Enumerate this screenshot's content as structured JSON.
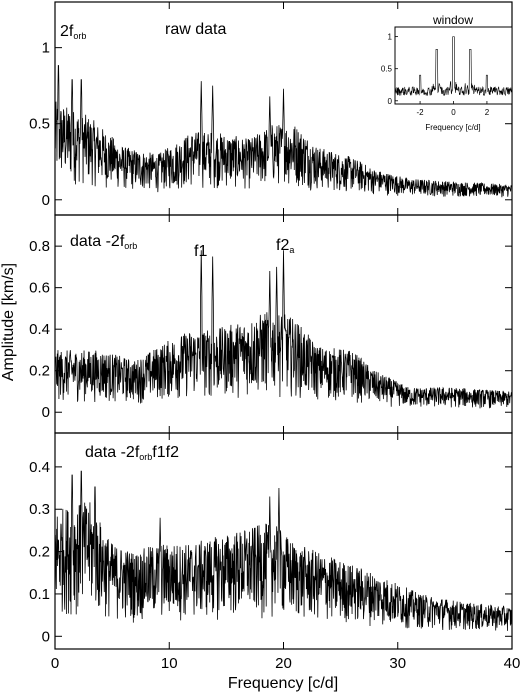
{
  "chart_data": [
    {
      "type": "line",
      "panel": "top",
      "annotations": {
        "orb_main": "2f",
        "orb_sub": "orb",
        "label": "raw data"
      },
      "xlim": [
        0,
        40
      ],
      "ylim": [
        -0.1,
        1.3
      ],
      "yticks": [
        0,
        0.5,
        1
      ],
      "ytick_labels": [
        "0",
        "0.5",
        "1"
      ],
      "peaks": [
        {
          "x": 0.3,
          "y": 0.95
        },
        {
          "x": 1.5,
          "y": 0.85
        },
        {
          "x": 2.3,
          "y": 0.85
        },
        {
          "x": 12.8,
          "y": 0.78
        },
        {
          "x": 13.8,
          "y": 0.75
        },
        {
          "x": 18.8,
          "y": 0.68
        },
        {
          "x": 20.0,
          "y": 0.73
        }
      ],
      "noise_envelope": [
        [
          0,
          0.65
        ],
        [
          3,
          0.55
        ],
        [
          6,
          0.35
        ],
        [
          9,
          0.3
        ],
        [
          12,
          0.45
        ],
        [
          14,
          0.45
        ],
        [
          17,
          0.4
        ],
        [
          19,
          0.5
        ],
        [
          21,
          0.5
        ],
        [
          23,
          0.35
        ],
        [
          26,
          0.28
        ],
        [
          28,
          0.2
        ],
        [
          31,
          0.14
        ],
        [
          35,
          0.12
        ],
        [
          40,
          0.1
        ]
      ],
      "inset": {
        "title": "window",
        "xlabel": "Frequency [c/d]",
        "xlim": [
          -3.5,
          3.5
        ],
        "ylim": [
          -0.05,
          1.15
        ],
        "xticks": [
          -2,
          0,
          2
        ],
        "xtick_labels": [
          "-2",
          "0",
          "2"
        ],
        "yticks": [
          0,
          0.5,
          1
        ],
        "ytick_labels": [
          "0",
          "0.5",
          "1"
        ],
        "peaks": [
          {
            "x": 0,
            "y": 1.0
          },
          {
            "x": -1,
            "y": 0.8
          },
          {
            "x": 1,
            "y": 0.8
          },
          {
            "x": -2,
            "y": 0.4
          },
          {
            "x": 2,
            "y": 0.4
          }
        ]
      }
    },
    {
      "type": "line",
      "panel": "middle",
      "annotations": {
        "data_label": "data -2f",
        "orb_sub": "orb",
        "f1": "f1",
        "f2_main": "f2",
        "f2_sub": "a"
      },
      "xlim": [
        0,
        40
      ],
      "ylim": [
        -0.1,
        0.95
      ],
      "yticks": [
        0,
        0.2,
        0.4,
        0.6,
        0.8
      ],
      "ytick_labels": [
        "0",
        "0.2",
        "0.4",
        "0.6",
        "0.8"
      ],
      "peaks": [
        {
          "x": 12.8,
          "y": 0.78
        },
        {
          "x": 13.8,
          "y": 0.75
        },
        {
          "x": 18.8,
          "y": 0.68
        },
        {
          "x": 19.4,
          "y": 0.7
        },
        {
          "x": 20.0,
          "y": 0.78
        }
      ],
      "noise_envelope": [
        [
          0,
          0.3
        ],
        [
          4,
          0.3
        ],
        [
          7,
          0.25
        ],
        [
          10,
          0.35
        ],
        [
          12,
          0.4
        ],
        [
          14,
          0.4
        ],
        [
          17,
          0.45
        ],
        [
          19,
          0.5
        ],
        [
          21,
          0.45
        ],
        [
          23,
          0.32
        ],
        [
          26,
          0.3
        ],
        [
          28,
          0.2
        ],
        [
          31,
          0.12
        ],
        [
          35,
          0.12
        ],
        [
          40,
          0.1
        ]
      ]
    },
    {
      "type": "line",
      "panel": "bottom",
      "annotations": {
        "data_label": "data -2f",
        "orb_sub": "orb",
        "suffix": "f1f2"
      },
      "xlim": [
        0,
        40
      ],
      "ylim": [
        -0.03,
        0.48
      ],
      "yticks": [
        0,
        0.1,
        0.2,
        0.3,
        0.4
      ],
      "ytick_labels": [
        "0",
        "0.1",
        "0.2",
        "0.3",
        "0.4"
      ],
      "peaks": [
        {
          "x": 1.5,
          "y": 0.41
        },
        {
          "x": 2.3,
          "y": 0.42
        },
        {
          "x": 3.5,
          "y": 0.38
        },
        {
          "x": 9.2,
          "y": 0.28
        },
        {
          "x": 18.8,
          "y": 0.33
        },
        {
          "x": 19.6,
          "y": 0.35
        }
      ],
      "noise_envelope": [
        [
          0,
          0.3
        ],
        [
          3,
          0.32
        ],
        [
          5,
          0.22
        ],
        [
          7,
          0.2
        ],
        [
          9,
          0.22
        ],
        [
          12,
          0.22
        ],
        [
          16,
          0.25
        ],
        [
          19,
          0.27
        ],
        [
          21,
          0.22
        ],
        [
          24,
          0.19
        ],
        [
          28,
          0.15
        ],
        [
          32,
          0.1
        ],
        [
          36,
          0.08
        ],
        [
          40,
          0.07
        ]
      ]
    }
  ],
  "axes": {
    "xlabel": "Frequency [c/d]",
    "ylabel": "Amplitude [km/s]",
    "xticks": [
      0,
      10,
      20,
      30,
      40
    ],
    "xtick_labels": [
      "0",
      "10",
      "20",
      "30",
      "40"
    ]
  }
}
